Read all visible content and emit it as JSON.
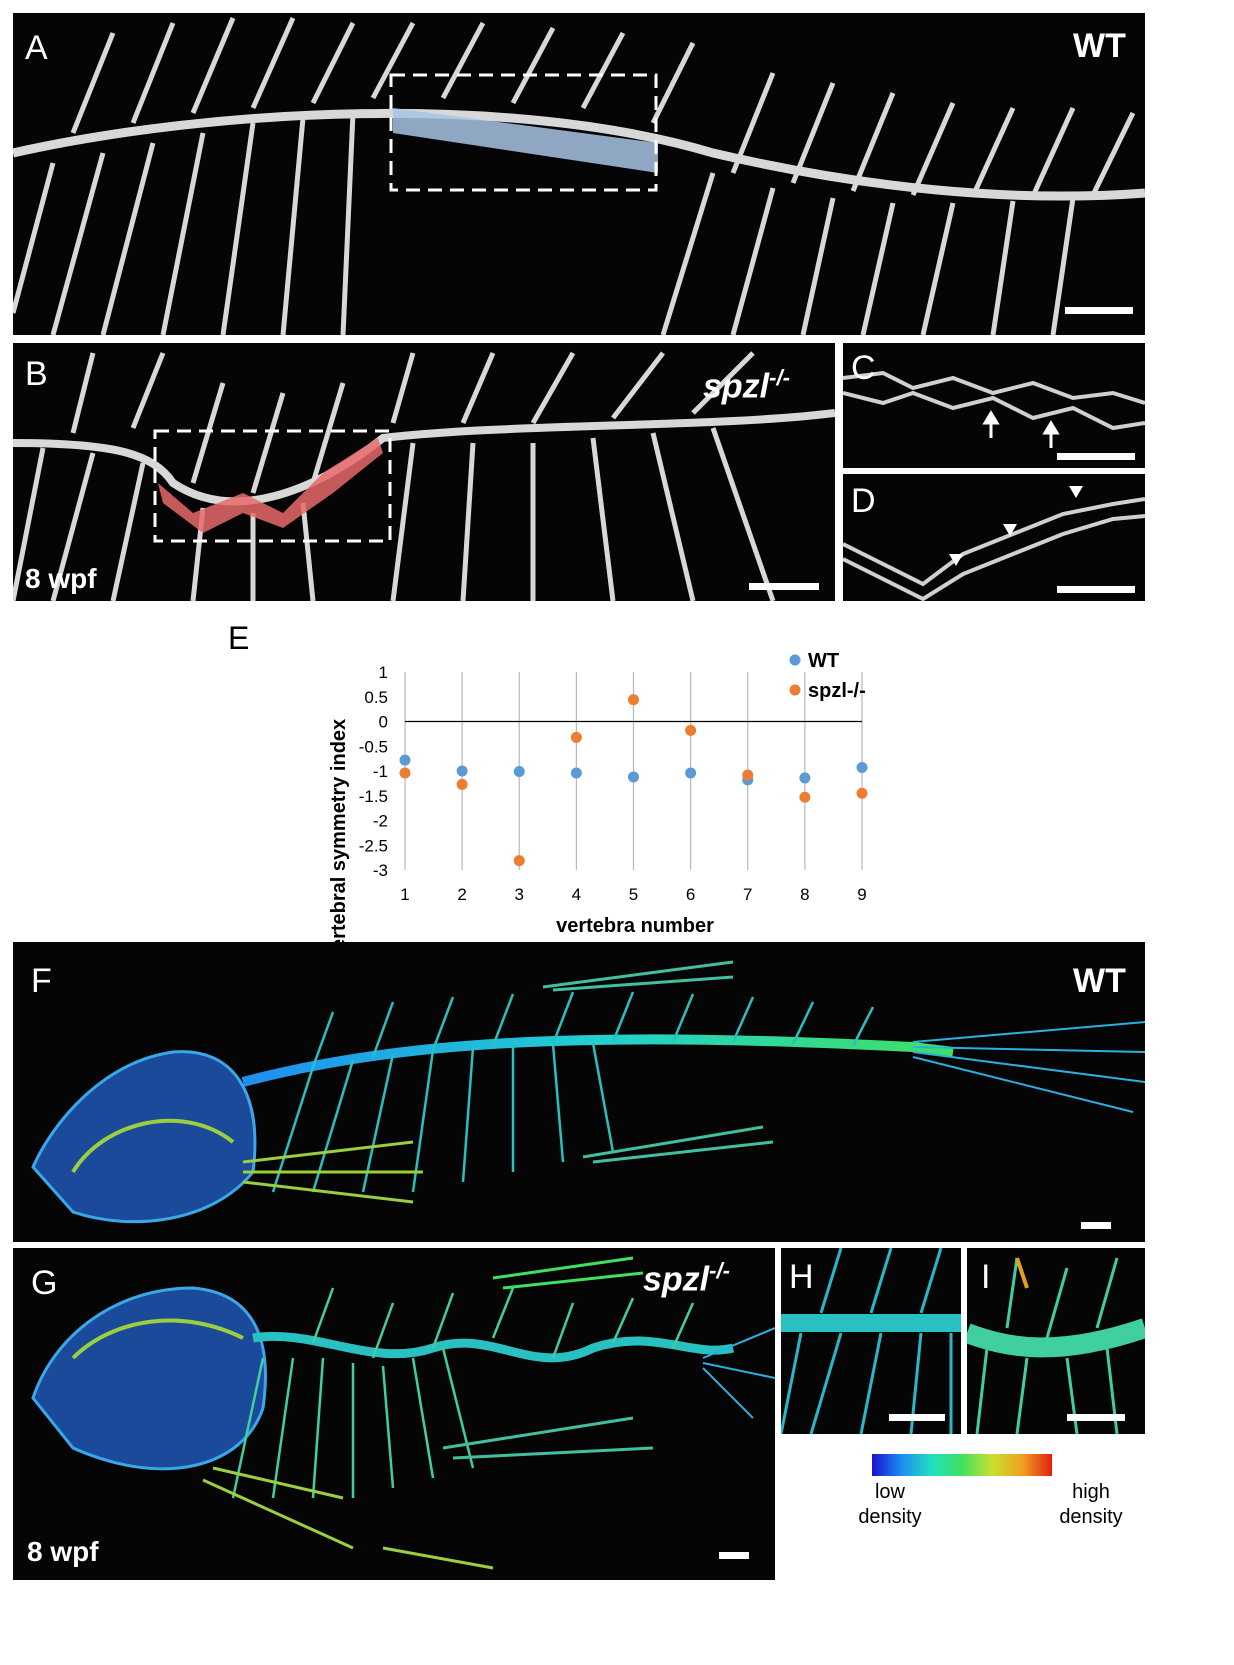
{
  "panels": {
    "a": {
      "label": "A",
      "genotype": "WT"
    },
    "b": {
      "label": "B",
      "genotype": "spzl",
      "genotype_sup": "-/-",
      "stage": "8 wpf"
    },
    "c": {
      "label": "C"
    },
    "d": {
      "label": "D"
    },
    "e": {
      "label": "E"
    },
    "f": {
      "label": "F",
      "genotype": "WT"
    },
    "g": {
      "label": "G",
      "genotype": "spzl",
      "genotype_sup": "-/-",
      "stage": "8 wpf"
    },
    "h": {
      "label": "H"
    },
    "i": {
      "label": "I"
    }
  },
  "colorbar": {
    "low_label_1": "low",
    "low_label_2": "density",
    "high_label_1": "high",
    "high_label_2": "density",
    "colors": [
      "#1a10d0",
      "#1e8ff0",
      "#22e0c0",
      "#40e060",
      "#c8e030",
      "#f0a020",
      "#e02010"
    ]
  },
  "chart_data": {
    "type": "scatter",
    "title": "",
    "xlabel": "vertebra number",
    "ylabel": "vertebral symmetry index",
    "x": [
      1,
      2,
      3,
      4,
      5,
      6,
      7,
      8,
      9
    ],
    "xlim": [
      1,
      9
    ],
    "ylim": [
      -3,
      1
    ],
    "yticks": [
      "1",
      "0.5",
      "0",
      "-0.5",
      "-1",
      "-1.5",
      "-2",
      "-2.5",
      "-3"
    ],
    "xticks": [
      "1",
      "2",
      "3",
      "4",
      "5",
      "6",
      "7",
      "8",
      "9"
    ],
    "legend_position": "top-right",
    "grid": "vertical lines at each vertebra",
    "series": [
      {
        "name": "WT",
        "color": "#5b9bd5",
        "values": [
          -0.78,
          -1.0,
          -1.01,
          -1.04,
          -1.12,
          -1.04,
          -1.18,
          -1.14,
          -0.93
        ]
      },
      {
        "name": "spzl-/-",
        "color": "#ed7d31",
        "values": [
          -1.04,
          -1.27,
          -2.81,
          -0.32,
          0.44,
          -0.18,
          -1.08,
          -1.53,
          -1.45
        ]
      }
    ]
  }
}
